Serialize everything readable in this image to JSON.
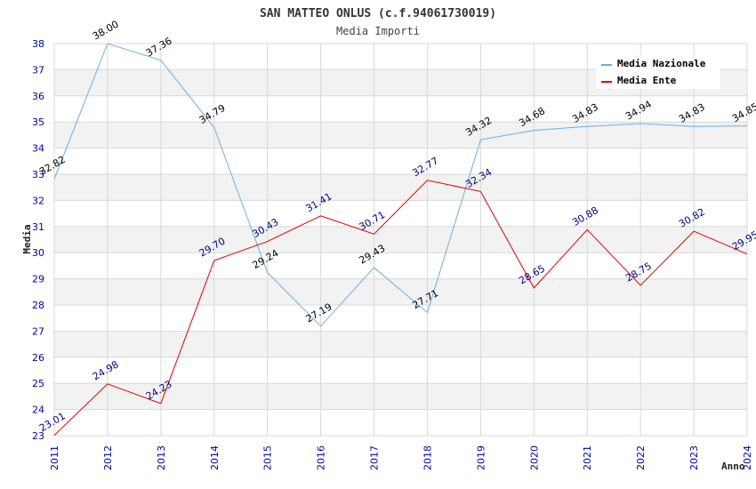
{
  "title": "SAN MATTEO ONLUS (c.f.94061730019)",
  "subtitle": "Media Importi",
  "colors": {
    "naz": "#6aaee8",
    "ente": "#e00000",
    "band": "#f2f2f2",
    "grid": "#d8d8d8",
    "tick": "#0000aa"
  },
  "chart_data": {
    "type": "line",
    "title": "SAN MATTEO ONLUS (c.f.94061730019)",
    "subtitle": "Media Importi",
    "xlabel": "Anno",
    "ylabel": "Media",
    "ylim": [
      23,
      38
    ],
    "yticks": [
      "23",
      "24",
      "25",
      "26",
      "27",
      "28",
      "29",
      "30",
      "31",
      "32",
      "33",
      "34",
      "35",
      "36",
      "37",
      "38"
    ],
    "categories": [
      "2011",
      "2012",
      "2013",
      "2014",
      "2015",
      "2016",
      "2017",
      "2018",
      "2019",
      "2020",
      "2021",
      "2022",
      "2023",
      "2024"
    ],
    "legend_position": "top-right",
    "series": [
      {
        "name": "Media Nazionale",
        "key": "naz",
        "values": [
          32.82,
          38.0,
          37.36,
          34.79,
          29.24,
          27.19,
          29.43,
          27.71,
          34.32,
          34.68,
          34.83,
          34.94,
          34.83,
          34.85
        ],
        "labels": [
          "32.82",
          "38.00",
          "37.36",
          "34.79",
          "29.24",
          "27.19",
          "29.43",
          "27.71",
          "34.32",
          "34.68",
          "34.83",
          "34.94",
          "34.83",
          "34.85"
        ]
      },
      {
        "name": "Media Ente",
        "key": "ente",
        "values": [
          23.01,
          24.98,
          24.23,
          29.7,
          30.43,
          31.41,
          30.71,
          32.77,
          32.34,
          28.65,
          30.88,
          28.75,
          30.82,
          29.95
        ],
        "labels": [
          "23.01",
          "24.98",
          "24.23",
          "29.70",
          "30.43",
          "31.41",
          "30.71",
          "32.77",
          "32.34",
          "28.65",
          "30.88",
          "28.75",
          "30.82",
          "29.95"
        ]
      }
    ]
  }
}
